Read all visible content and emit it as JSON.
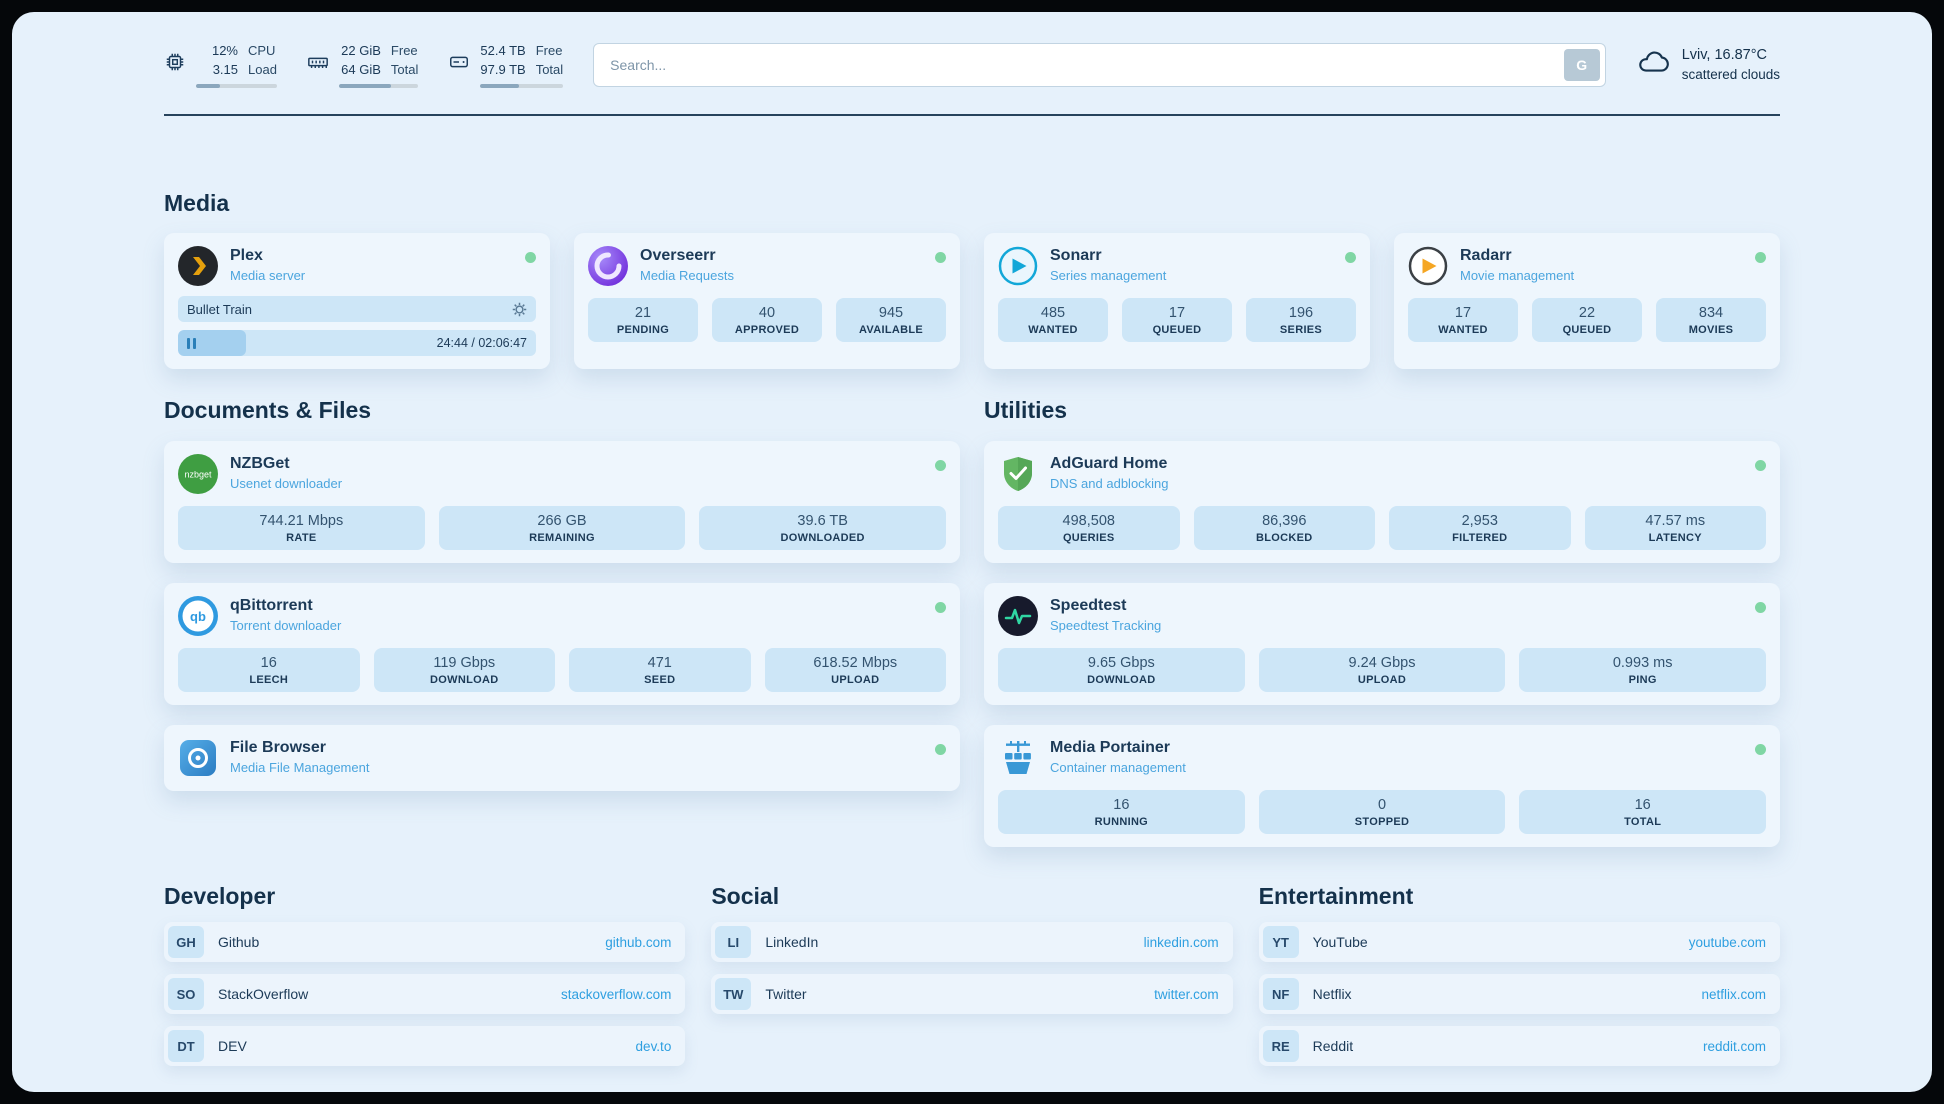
{
  "header": {
    "cpu": {
      "icon": "cpu-chip-icon",
      "value_top": "12%",
      "value_bottom": "3.15",
      "label_top": "CPU",
      "label_bottom": "Load",
      "progress": 30
    },
    "ram": {
      "icon": "ram-icon",
      "value_top": "22 GiB",
      "value_bottom": "64 GiB",
      "label_top": "Free",
      "label_bottom": "Total",
      "progress": 66
    },
    "disk": {
      "icon": "disk-icon",
      "value_top": "52.4 TB",
      "value_bottom": "97.9 TB",
      "label_top": "Free",
      "label_bottom": "Total",
      "progress": 47
    },
    "search": {
      "placeholder": "Search...",
      "button_label": "G"
    },
    "weather": {
      "icon": "cloud-icon",
      "location": "Lviv, 16.87°C",
      "condition": "scattered clouds"
    }
  },
  "sections": {
    "media": {
      "title": "Media",
      "plex": {
        "name": "Plex",
        "subtitle": "Media server",
        "now_playing": "Bullet Train",
        "time": "24:44 / 02:06:47",
        "progress_percent": 19
      },
      "overseerr": {
        "name": "Overseerr",
        "subtitle": "Media Requests",
        "stats": [
          {
            "value": "21",
            "label": "PENDING"
          },
          {
            "value": "40",
            "label": "APPROVED"
          },
          {
            "value": "945",
            "label": "AVAILABLE"
          }
        ]
      },
      "sonarr": {
        "name": "Sonarr",
        "subtitle": "Series management",
        "stats": [
          {
            "value": "485",
            "label": "WANTED"
          },
          {
            "value": "17",
            "label": "QUEUED"
          },
          {
            "value": "196",
            "label": "SERIES"
          }
        ]
      },
      "radarr": {
        "name": "Radarr",
        "subtitle": "Movie management",
        "stats": [
          {
            "value": "17",
            "label": "WANTED"
          },
          {
            "value": "22",
            "label": "QUEUED"
          },
          {
            "value": "834",
            "label": "MOVIES"
          }
        ]
      }
    },
    "documents": {
      "title": "Documents & Files",
      "nzbget": {
        "name": "NZBGet",
        "subtitle": "Usenet downloader",
        "icon_text": "nzbget",
        "stats": [
          {
            "value": "744.21 Mbps",
            "label": "RATE"
          },
          {
            "value": "266 GB",
            "label": "REMAINING"
          },
          {
            "value": "39.6 TB",
            "label": "DOWNLOADED"
          }
        ]
      },
      "qbittorrent": {
        "name": "qBittorrent",
        "subtitle": "Torrent downloader",
        "icon_text": "qb",
        "stats": [
          {
            "value": "16",
            "label": "LEECH"
          },
          {
            "value": "119 Gbps",
            "label": "DOWNLOAD"
          },
          {
            "value": "471",
            "label": "SEED"
          },
          {
            "value": "618.52 Mbps",
            "label": "UPLOAD"
          }
        ]
      },
      "filebrowser": {
        "name": "File Browser",
        "subtitle": "Media File Management"
      }
    },
    "utilities": {
      "title": "Utilities",
      "adguard": {
        "name": "AdGuard Home",
        "subtitle": "DNS and adblocking",
        "stats": [
          {
            "value": "498,508",
            "label": "QUERIES"
          },
          {
            "value": "86,396",
            "label": "BLOCKED"
          },
          {
            "value": "2,953",
            "label": "FILTERED"
          },
          {
            "value": "47.57 ms",
            "label": "LATENCY"
          }
        ]
      },
      "speedtest": {
        "name": "Speedtest",
        "subtitle": "Speedtest Tracking",
        "stats": [
          {
            "value": "9.65 Gbps",
            "label": "DOWNLOAD"
          },
          {
            "value": "9.24 Gbps",
            "label": "UPLOAD"
          },
          {
            "value": "0.993 ms",
            "label": "PING"
          }
        ]
      },
      "portainer": {
        "name": "Media Portainer",
        "subtitle": "Container management",
        "stats": [
          {
            "value": "16",
            "label": "RUNNING"
          },
          {
            "value": "0",
            "label": "STOPPED"
          },
          {
            "value": "16",
            "label": "TOTAL"
          }
        ]
      }
    },
    "developer": {
      "title": "Developer",
      "links": [
        {
          "abbr": "GH",
          "name": "Github",
          "url": "github.com"
        },
        {
          "abbr": "SO",
          "name": "StackOverflow",
          "url": "stackoverflow.com"
        },
        {
          "abbr": "DT",
          "name": "DEV",
          "url": "dev.to"
        }
      ]
    },
    "social": {
      "title": "Social",
      "links": [
        {
          "abbr": "LI",
          "name": "LinkedIn",
          "url": "linkedin.com"
        },
        {
          "abbr": "TW",
          "name": "Twitter",
          "url": "twitter.com"
        }
      ]
    },
    "entertainment": {
      "title": "Entertainment",
      "links": [
        {
          "abbr": "YT",
          "name": "YouTube",
          "url": "youtube.com"
        },
        {
          "abbr": "NF",
          "name": "Netflix",
          "url": "netflix.com"
        },
        {
          "abbr": "RE",
          "name": "Reddit",
          "url": "reddit.com"
        }
      ]
    }
  },
  "colors": {
    "page_bg": "#e6f1fb",
    "card_bg": "#eef6fd",
    "chip_bg": "#cde6f7",
    "accent_link": "#2e9fe0",
    "subtitle_blue": "#4ba5de",
    "status_green": "#7fd6a4",
    "heading_text": "#14314b"
  }
}
